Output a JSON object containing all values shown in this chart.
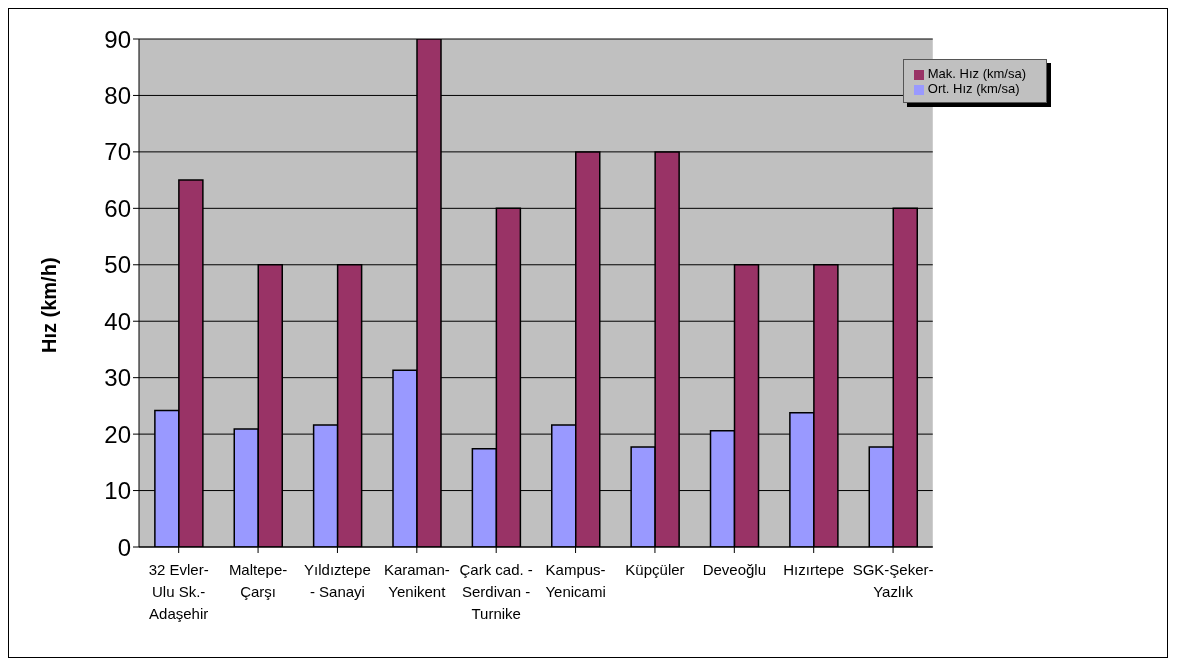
{
  "chart_data": {
    "type": "bar",
    "ylabel": "Hız (km/h)",
    "categories": [
      "32 Evler-Ulu Sk.-Adaşehir",
      "Maltepe-Çarşı",
      "Yıldıztepe - Sanayi",
      "Karaman-Yenikent",
      "Çark cad. - Serdivan - Turnike",
      "Kampus-Yenicami",
      "Küpçüler",
      "Deveoğlu",
      "Hızırtepe",
      "SGK-Şeker-Yazlık"
    ],
    "series": [
      {
        "name": "Ort. Hız (km/sa)",
        "color": "#9999ff",
        "values": [
          24.2,
          20.9,
          21.6,
          31.3,
          17.4,
          21.6,
          17.7,
          20.6,
          23.8,
          17.7
        ]
      },
      {
        "name": "Mak. Hız (km/sa)",
        "color": "#993366",
        "values": [
          65,
          50,
          50,
          90,
          60,
          70,
          70,
          50,
          50,
          60
        ]
      }
    ],
    "ylim": [
      0,
      90
    ],
    "yticks": [
      0,
      10,
      20,
      30,
      40,
      50,
      60,
      70,
      80,
      90
    ],
    "grid": "y",
    "legend": "top right"
  }
}
